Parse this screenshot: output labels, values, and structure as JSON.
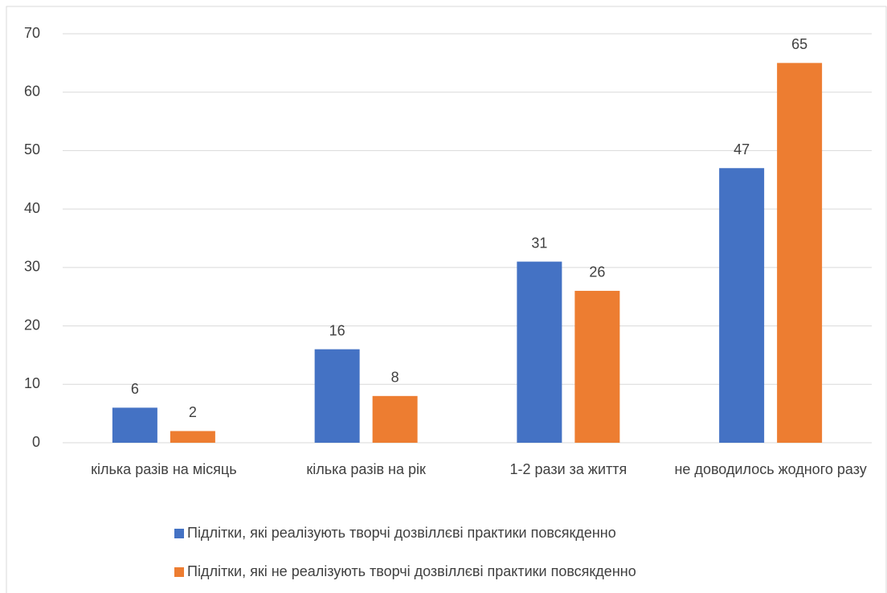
{
  "chart_data": {
    "type": "bar",
    "categories": [
      "кілька разів на місяць",
      "кілька разів на рік",
      "1-2 рази за життя",
      "не доводилось жодного разу"
    ],
    "series": [
      {
        "name": "Підлітки, які реалізують творчі дозвіллєві практики повсякденно",
        "color": "#4472c4",
        "values": [
          6,
          16,
          31,
          47
        ]
      },
      {
        "name": "Підлітки, які не реалізують творчі дозвіллєві практики повсякденно",
        "color": "#ed7d31",
        "values": [
          2,
          8,
          26,
          65
        ]
      }
    ],
    "ylim": [
      0,
      70
    ],
    "yticks": [
      0,
      10,
      20,
      30,
      40,
      50,
      60,
      70
    ],
    "grid": true,
    "legend": "bottom"
  }
}
